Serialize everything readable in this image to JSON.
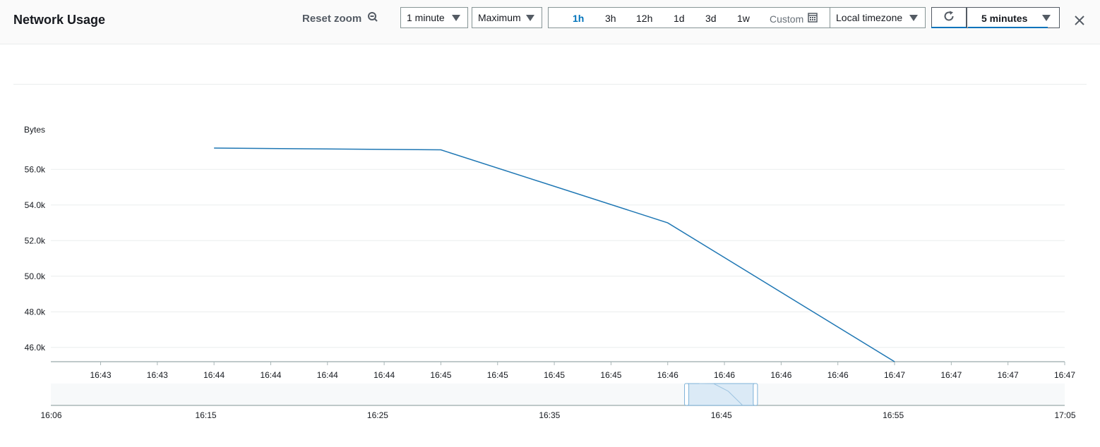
{
  "header": {
    "title": "Network Usage",
    "reset_zoom": "Reset zoom",
    "period": "1 minute",
    "statistic": "Maximum",
    "ranges": [
      "1h",
      "3h",
      "12h",
      "1d",
      "3d",
      "1w"
    ],
    "active_range": "1h",
    "custom": "Custom",
    "timezone": "Local timezone",
    "refresh_interval": "5 minutes"
  },
  "colors": {
    "line": "#1f77b4",
    "accent": "#0073bb"
  },
  "icons": [
    "zoom-out-icon",
    "calendar-icon",
    "refresh-icon",
    "close-icon",
    "caret-down-icon"
  ],
  "chart_data": {
    "type": "line",
    "ylabel": "Bytes",
    "y_ticks": [
      "46.0k",
      "48.0k",
      "50.0k",
      "52.0k",
      "54.0k",
      "56.0k"
    ],
    "ylim": [
      45200,
      57200
    ],
    "x_tick_labels": [
      "16:43",
      "16:43",
      "16:44",
      "16:44",
      "16:44",
      "16:44",
      "16:45",
      "16:45",
      "16:45",
      "16:45",
      "16:46",
      "16:46",
      "16:46",
      "16:46",
      "16:47",
      "16:47",
      "16:47",
      "16:47"
    ],
    "x": [
      "16:44",
      "16:45",
      "16:46",
      "16:47"
    ],
    "series": [
      {
        "values": [
          57200,
          57100,
          53000,
          45200
        ]
      }
    ],
    "grid": true,
    "navigator": {
      "labels": [
        "16:06",
        "16:15",
        "16:25",
        "16:35",
        "16:45",
        "16:55",
        "17:05"
      ],
      "selection": [
        "16:43",
        "16:47"
      ]
    }
  }
}
